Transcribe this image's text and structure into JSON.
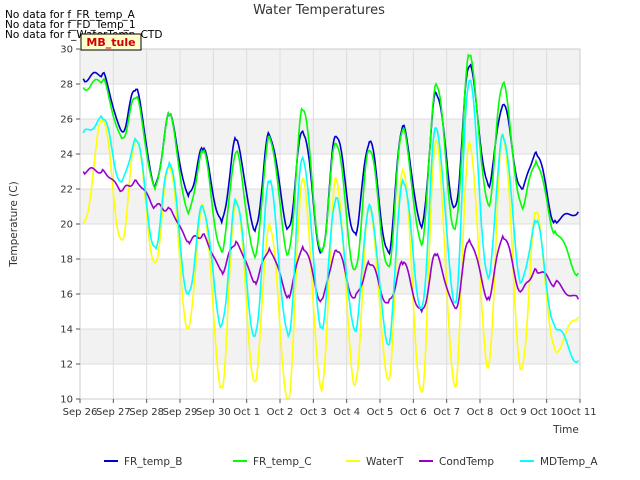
{
  "chart_data": {
    "type": "line",
    "title": "Water Temperatures",
    "xlabel": "Time",
    "ylabel": "Temperature (C)",
    "ylim": [
      10,
      30
    ],
    "yticks": [
      10,
      12,
      14,
      16,
      18,
      20,
      22,
      24,
      26,
      28,
      30
    ],
    "xlim": [
      "Sep 26",
      "Oct 11"
    ],
    "xtick_labels": [
      "Sep 26",
      "Sep 27",
      "Sep 28",
      "Sep 29",
      "Sep 30",
      "Oct 1",
      "Oct 2",
      "Oct 3",
      "Oct 4",
      "Oct 5",
      "Oct 6",
      "Oct 7",
      "Oct 8",
      "Oct 9",
      "Oct 10",
      "Oct 11"
    ],
    "grid": true,
    "banded_background": true,
    "no_data_messages": [
      "No data for f_FR_temp_A",
      "No data for f_FD_Temp_1",
      "No data for f_WaterTemp_CTD"
    ],
    "badge": "MB_tule",
    "legend_position": "bottom-center",
    "day_dates": [
      "Sep 26",
      "Sep 27",
      "Sep 28",
      "Sep 29",
      "Sep 30",
      "Oct 1",
      "Oct 2",
      "Oct 3",
      "Oct 4",
      "Oct 5",
      "Oct 6",
      "Oct 7",
      "Oct 8",
      "Oct 9",
      "Oct 10"
    ],
    "series": [
      {
        "name": "FR_temp_B",
        "color": "#0000cc",
        "peaks": [
          28.6,
          27.7,
          26.2,
          24.2,
          24.8,
          25.1,
          25.3,
          25.0,
          24.7,
          25.6,
          27.5,
          29.0,
          26.8,
          24.1
        ],
        "troughs": [
          28.3,
          25.3,
          22.1,
          21.6,
          20.1,
          19.6,
          19.8,
          18.4,
          19.5,
          18.4,
          19.8,
          21.0,
          22.2,
          22.0,
          20.2,
          20.7
        ]
      },
      {
        "name": "FR_temp_C",
        "color": "#00ff00",
        "peaks": [
          28.2,
          27.2,
          26.2,
          24.1,
          24.1,
          25.0,
          26.5,
          24.6,
          24.2,
          25.4,
          28.0,
          29.6,
          28.0,
          23.6
        ],
        "troughs": [
          27.8,
          24.9,
          22.0,
          20.6,
          18.4,
          18.1,
          18.3,
          18.4,
          17.4,
          17.6,
          18.8,
          19.7,
          21.1,
          21.0,
          19.6,
          17.2
        ]
      },
      {
        "name": "WaterT",
        "color": "#ffff00",
        "peaks": [
          25.9,
          24.8,
          23.3,
          21.1,
          21.4,
          20.0,
          22.6,
          22.6,
          21.0,
          23.1,
          24.8,
          24.7,
          25.1,
          20.6
        ],
        "troughs": [
          20.0,
          19.1,
          17.8,
          14.0,
          10.7,
          11.0,
          10.0,
          10.5,
          10.8,
          11.1,
          10.4,
          10.7,
          11.8,
          11.7,
          12.8,
          14.7
        ]
      },
      {
        "name": "CondTemp",
        "color": "#9900cc",
        "peaks": [
          23.1,
          22.5,
          20.9,
          19.4,
          19.0,
          18.6,
          18.7,
          18.5,
          17.7,
          17.7,
          18.2,
          19.1,
          19.3,
          17.4
        ],
        "troughs": [
          23.0,
          21.9,
          21.0,
          19.0,
          17.3,
          16.7,
          15.9,
          15.7,
          15.8,
          15.5,
          15.0,
          15.2,
          15.8,
          16.2,
          16.6,
          15.7
        ]
      },
      {
        "name": "MDTemp_A",
        "color": "#00ffff",
        "peaks": [
          26.0,
          24.8,
          23.5,
          21.0,
          21.3,
          22.4,
          23.8,
          21.5,
          21.1,
          22.5,
          25.5,
          28.2,
          25.1,
          20.1
        ],
        "troughs": [
          25.2,
          22.4,
          18.7,
          16.0,
          14.2,
          13.6,
          13.6,
          14.1,
          13.9,
          13.1,
          15.2,
          15.5,
          16.9,
          16.7,
          14.1,
          12.2
        ]
      }
    ]
  }
}
